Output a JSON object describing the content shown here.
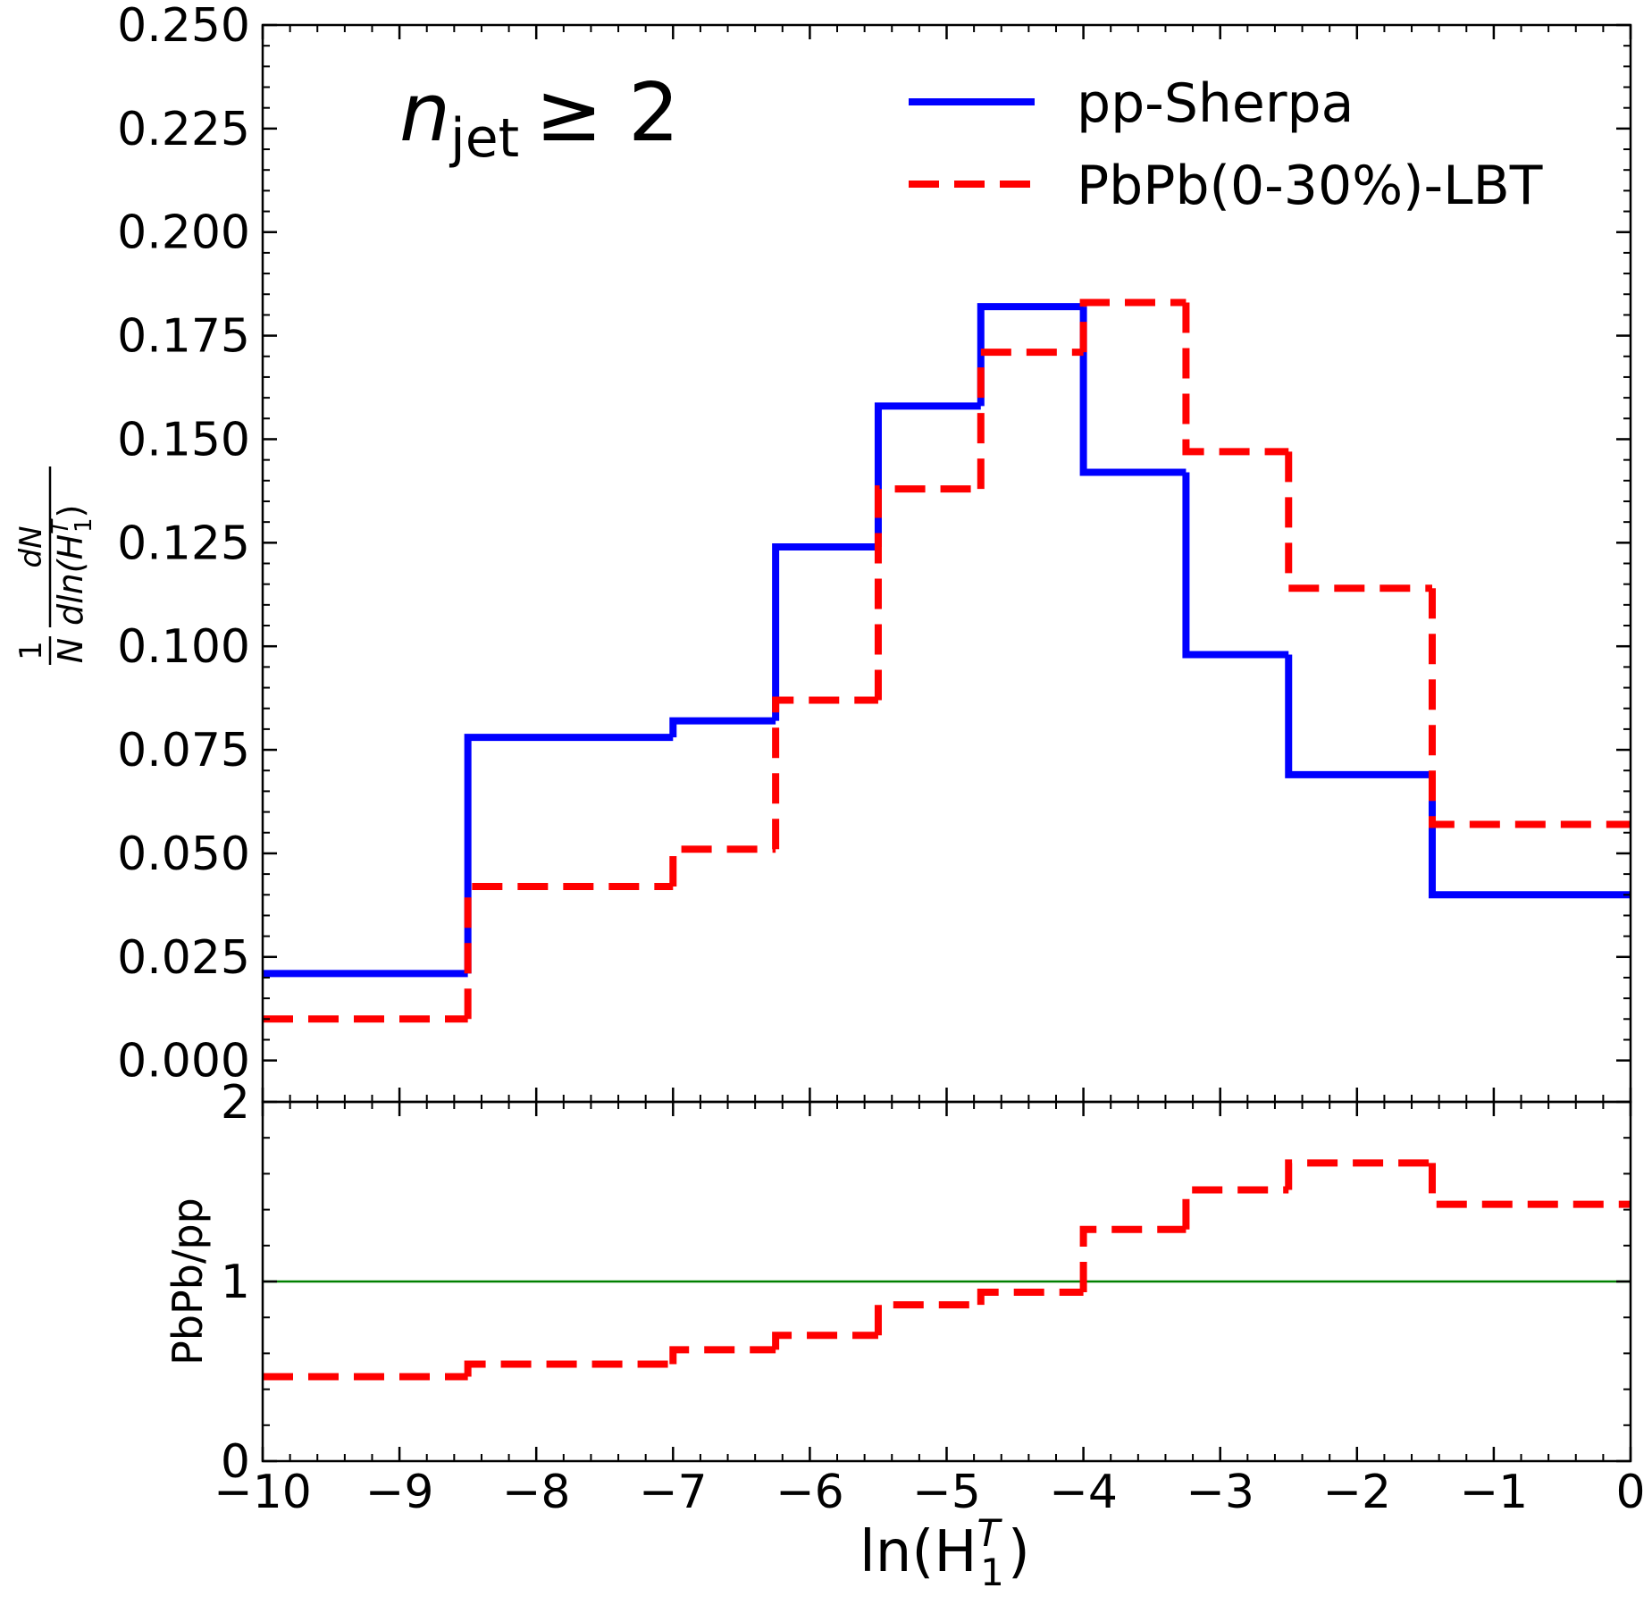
{
  "chart_data": [
    {
      "type": "histogram",
      "annotation": {
        "text": "n",
        "subscript": "jet",
        "suffix": "≥ 2"
      },
      "y_label": {
        "numerator_1": "1",
        "denominator_1": "N",
        "numerator_2": "dN",
        "denominator_2": "dln(H",
        "superscript": "T",
        "subscript": "1",
        "close": ")"
      },
      "bins": [
        -10,
        -8.5,
        -7,
        -6.25,
        -5.5,
        -4.75,
        -4,
        -3.25,
        -2.5,
        -1.45,
        0
      ],
      "series": [
        {
          "name": "pp-Sherpa",
          "color": "#0000ff",
          "line_style": "solid",
          "values": [
            0.021,
            0.078,
            0.082,
            0.124,
            0.158,
            0.182,
            0.142,
            0.098,
            0.069,
            0.04
          ]
        },
        {
          "name": "PbPb(0-30%)-LBT",
          "color": "#ff0000",
          "line_style": "dashed",
          "values": [
            0.01,
            0.042,
            0.051,
            0.087,
            0.138,
            0.171,
            0.183,
            0.147,
            0.114,
            0.057
          ]
        }
      ],
      "xlim": [
        -10,
        0
      ],
      "xticks": [
        -10,
        -9,
        -8,
        -7,
        -6,
        -5,
        -4,
        -3,
        -2,
        -1,
        0
      ],
      "ylim": [
        -0.01,
        0.25
      ],
      "yticks": [
        {
          "value": 0,
          "label": "0.000"
        },
        {
          "value": 0.025,
          "label": "0.025"
        },
        {
          "value": 0.05,
          "label": "0.050"
        },
        {
          "value": 0.075,
          "label": "0.075"
        },
        {
          "value": 0.1,
          "label": "0.100"
        },
        {
          "value": 0.125,
          "label": "0.125"
        },
        {
          "value": 0.15,
          "label": "0.150"
        },
        {
          "value": 0.175,
          "label": "0.175"
        },
        {
          "value": 0.2,
          "label": "0.200"
        },
        {
          "value": 0.225,
          "label": "0.225"
        },
        {
          "value": 0.25,
          "label": "0.250"
        }
      ],
      "legend": "upper right"
    },
    {
      "type": "histogram",
      "y_label": "PbPb/pp",
      "x_label": {
        "text": "ln(H",
        "superscript": "T",
        "subscript": "1",
        "close": ")"
      },
      "bins": [
        -10,
        -8.5,
        -7,
        -6.25,
        -5.5,
        -4.75,
        -4,
        -3.25,
        -2.5,
        -1.45,
        0
      ],
      "series": [
        {
          "color": "#ff0000",
          "line_style": "dashed",
          "values": [
            0.47,
            0.54,
            0.62,
            0.7,
            0.87,
            0.94,
            1.29,
            1.51,
            1.66,
            1.43
          ]
        }
      ],
      "reference_line": {
        "value": 1,
        "color": "#008000"
      },
      "xlim": [
        -10,
        0
      ],
      "xticks": [
        {
          "value": -10,
          "label": "−10"
        },
        {
          "value": -9,
          "label": "−9"
        },
        {
          "value": -8,
          "label": "−8"
        },
        {
          "value": -7,
          "label": "−7"
        },
        {
          "value": -6,
          "label": "−6"
        },
        {
          "value": -5,
          "label": "−5"
        },
        {
          "value": -4,
          "label": "−4"
        },
        {
          "value": -3,
          "label": "−3"
        },
        {
          "value": -2,
          "label": "−2"
        },
        {
          "value": -1,
          "label": "−1"
        },
        0
      ],
      "ylim": [
        0,
        2
      ],
      "yticks": [
        0,
        1,
        2
      ]
    }
  ]
}
